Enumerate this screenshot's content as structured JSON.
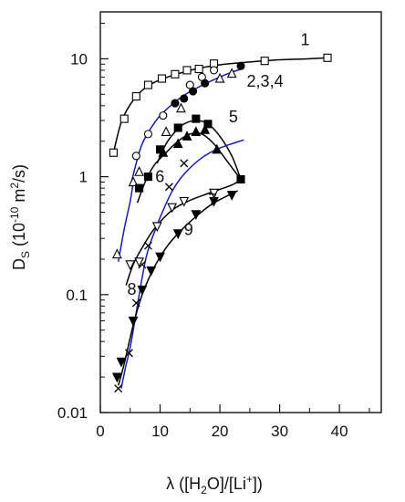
{
  "chart_data": {
    "type": "scatter",
    "x_scale": "linear",
    "y_scale": "log",
    "xlim": [
      0,
      47
    ],
    "ylim": [
      0.01,
      25
    ],
    "x_ticks": [
      0,
      10,
      20,
      30,
      40
    ],
    "y_ticks": [
      0.01,
      0.1,
      1,
      10
    ],
    "x_tick_labels": [
      "0",
      "10",
      "20",
      "30",
      "40"
    ],
    "y_tick_labels": [
      "0.01",
      "0.1",
      "1",
      "10"
    ],
    "xlabel": {
      "prefix": "λ ([H",
      "sub": "2",
      "middle": "O]/[Li",
      "sup": "+",
      "suffix": "])"
    },
    "ylabel": {
      "prefix": "D",
      "sub": "S",
      "middle": " (10",
      "sup": "-10",
      "suffix": " m",
      "sup2": "2",
      "suffix2": "/s)"
    },
    "grid": false,
    "curve_labels": [
      {
        "text": "1",
        "x": 33.5,
        "y": 13.0
      },
      {
        "text": "2,3,4",
        "x": 24.5,
        "y": 5.8
      },
      {
        "text": "5",
        "x": 21.5,
        "y": 2.9
      },
      {
        "text": "6",
        "x": 9.2,
        "y": 0.9
      },
      {
        "text": "7",
        "x": 18.0,
        "y": 0.57
      },
      {
        "text": "9",
        "x": 14.0,
        "y": 0.32
      },
      {
        "text": "8",
        "x": 4.5,
        "y": 0.1
      }
    ],
    "series": [
      {
        "marker": "square-open",
        "color": "#000000",
        "points": [
          [
            2.2,
            1.6
          ],
          [
            4.0,
            3.1
          ],
          [
            6.0,
            4.8
          ],
          [
            8.0,
            6.0
          ],
          [
            10.3,
            6.8
          ],
          [
            12.5,
            7.4
          ],
          [
            14.5,
            8.0
          ],
          [
            16.5,
            8.2
          ],
          [
            19.0,
            9.1
          ],
          [
            27.5,
            9.6
          ],
          [
            38.0,
            10.2
          ]
        ]
      },
      {
        "marker": "circle-open",
        "color": "#000000",
        "points": [
          [
            6.0,
            1.5
          ],
          [
            8.0,
            2.3
          ],
          [
            10.5,
            3.3
          ],
          [
            15.0,
            6.0
          ],
          [
            17.0,
            7.0
          ],
          [
            19.0,
            8.0
          ]
        ]
      },
      {
        "marker": "circle-filled",
        "color": "#000000",
        "points": [
          [
            12.5,
            4.2
          ],
          [
            14.0,
            4.6
          ],
          [
            15.5,
            5.3
          ],
          [
            17.5,
            6.2
          ],
          [
            23.5,
            8.7
          ]
        ]
      },
      {
        "marker": "triangle-open",
        "color": "#000000",
        "points": [
          [
            2.8,
            0.22
          ],
          [
            5.5,
            0.9
          ],
          [
            6.5,
            1.1
          ],
          [
            11.0,
            2.4
          ],
          [
            13.5,
            3.8
          ],
          [
            20.0,
            6.8
          ],
          [
            22.0,
            7.5
          ]
        ]
      },
      {
        "marker": "square-filled",
        "color": "#000000",
        "points": [
          [
            6.5,
            0.8
          ],
          [
            8.0,
            1.0
          ],
          [
            10.0,
            1.7
          ],
          [
            13.0,
            2.6
          ],
          [
            16.0,
            3.1
          ],
          [
            18.0,
            2.8
          ],
          [
            23.5,
            0.95
          ]
        ]
      },
      {
        "marker": "triangle-filled",
        "color": "#000000",
        "points": [
          [
            10.5,
            1.6
          ],
          [
            13.0,
            1.9
          ],
          [
            14.5,
            2.2
          ],
          [
            16.0,
            2.4
          ],
          [
            17.5,
            2.5
          ],
          [
            19.5,
            1.7
          ]
        ]
      },
      {
        "marker": "cross",
        "color": "#000000",
        "points": [
          [
            3.0,
            0.016
          ],
          [
            4.8,
            0.032
          ],
          [
            6.0,
            0.085
          ],
          [
            7.0,
            0.18
          ],
          [
            8.0,
            0.26
          ],
          [
            11.5,
            0.82
          ],
          [
            14.0,
            1.3
          ]
        ]
      },
      {
        "marker": "triangle-down-open",
        "color": "#000000",
        "points": [
          [
            5.0,
            0.18
          ],
          [
            6.5,
            0.19
          ],
          [
            9.5,
            0.38
          ],
          [
            12.0,
            0.55
          ],
          [
            14.0,
            0.62
          ],
          [
            19.0,
            0.73
          ]
        ]
      },
      {
        "marker": "triangle-down-filled",
        "color": "#000000",
        "points": [
          [
            2.8,
            0.02
          ],
          [
            3.5,
            0.027
          ],
          [
            5.5,
            0.06
          ],
          [
            7.0,
            0.11
          ],
          [
            8.5,
            0.16
          ],
          [
            10.0,
            0.21
          ],
          [
            13.0,
            0.33
          ],
          [
            16.0,
            0.48
          ],
          [
            19.0,
            0.62
          ],
          [
            22.0,
            0.7
          ]
        ]
      }
    ],
    "curves": [
      {
        "id": "1",
        "color": "#000000",
        "points": [
          [
            2.2,
            1.6
          ],
          [
            3.5,
            2.9
          ],
          [
            5.0,
            4.1
          ],
          [
            7.0,
            5.4
          ],
          [
            9.0,
            6.3
          ],
          [
            12.0,
            7.2
          ],
          [
            16.0,
            8.2
          ],
          [
            20.0,
            8.9
          ],
          [
            25.0,
            9.4
          ],
          [
            30.0,
            9.8
          ],
          [
            35.0,
            10.0
          ],
          [
            38.0,
            10.2
          ]
        ]
      },
      {
        "id": "2,3,4",
        "color": "#1a1aaa",
        "points": [
          [
            5.2,
            0.9
          ],
          [
            6.0,
            1.3
          ],
          [
            7.0,
            1.9
          ],
          [
            8.5,
            2.6
          ],
          [
            10.0,
            3.3
          ],
          [
            12.0,
            4.1
          ],
          [
            14.0,
            4.9
          ],
          [
            16.0,
            5.6
          ],
          [
            18.0,
            6.3
          ],
          [
            20.0,
            7.0
          ],
          [
            22.0,
            7.7
          ],
          [
            24.0,
            8.3
          ]
        ]
      },
      {
        "id": "2,3,4-lower",
        "color": "#1a1aaa",
        "points": [
          [
            3.0,
            0.19
          ],
          [
            4.0,
            0.36
          ],
          [
            5.0,
            0.62
          ],
          [
            5.5,
            0.9
          ]
        ]
      },
      {
        "id": "5",
        "color": "#000000",
        "points": [
          [
            9.5,
            1.3
          ],
          [
            11.0,
            1.9
          ],
          [
            12.5,
            2.4
          ],
          [
            14.0,
            2.8
          ],
          [
            16.0,
            3.0
          ],
          [
            18.0,
            2.8
          ],
          [
            20.0,
            2.2
          ],
          [
            22.0,
            1.5
          ],
          [
            23.5,
            0.95
          ]
        ]
      },
      {
        "id": "6",
        "color": "#000000",
        "points": [
          [
            6.2,
            0.6
          ],
          [
            7.5,
            0.9
          ],
          [
            9.0,
            1.25
          ],
          [
            11.0,
            1.6
          ],
          [
            13.0,
            2.0
          ],
          [
            15.0,
            2.3
          ],
          [
            17.0,
            2.3
          ],
          [
            19.0,
            1.9
          ],
          [
            21.0,
            1.4
          ],
          [
            23.5,
            0.95
          ]
        ]
      },
      {
        "id": "7",
        "color": "#1a1aaa",
        "points": [
          [
            3.5,
            0.016
          ],
          [
            4.2,
            0.024
          ],
          [
            5.0,
            0.036
          ],
          [
            6.0,
            0.07
          ],
          [
            7.0,
            0.14
          ],
          [
            8.0,
            0.24
          ],
          [
            10.0,
            0.45
          ],
          [
            12.0,
            0.75
          ],
          [
            14.0,
            1.05
          ],
          [
            17.0,
            1.45
          ],
          [
            20.0,
            1.75
          ],
          [
            24.0,
            2.05
          ]
        ]
      },
      {
        "id": "8",
        "color": "#000000",
        "points": [
          [
            4.3,
            0.12
          ],
          [
            5.5,
            0.18
          ],
          [
            7.0,
            0.25
          ],
          [
            9.0,
            0.36
          ],
          [
            12.0,
            0.52
          ],
          [
            15.0,
            0.63
          ],
          [
            18.0,
            0.72
          ],
          [
            22.0,
            0.85
          ],
          [
            23.5,
            0.95
          ]
        ]
      },
      {
        "id": "9",
        "color": "#000000",
        "points": [
          [
            3.0,
            0.017
          ],
          [
            4.0,
            0.026
          ],
          [
            5.5,
            0.055
          ],
          [
            7.0,
            0.1
          ],
          [
            9.0,
            0.17
          ],
          [
            11.0,
            0.25
          ],
          [
            13.0,
            0.33
          ],
          [
            16.0,
            0.46
          ],
          [
            19.0,
            0.6
          ],
          [
            23.0,
            0.76
          ]
        ]
      }
    ]
  }
}
